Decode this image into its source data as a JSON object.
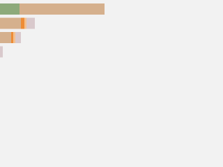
{
  "chart_data": {
    "type": "bar",
    "orientation": "horizontal",
    "stacked": true,
    "categories": [
      null,
      null,
      null,
      null
    ],
    "series": [
      {
        "color": "#8daa7b",
        "values": [
          28,
          0,
          0,
          0
        ]
      },
      {
        "color": "#d5b08d",
        "values": [
          122,
          30,
          16,
          0
        ]
      },
      {
        "color": "#ee8c36",
        "values": [
          0,
          5,
          3,
          0
        ]
      },
      {
        "color": "#f3c08f",
        "values": [
          0,
          3,
          3,
          0
        ]
      },
      {
        "color": "#d9c9cc",
        "values": [
          0,
          12,
          8,
          4
        ]
      }
    ],
    "xlim": [
      0,
      150
    ]
  }
}
